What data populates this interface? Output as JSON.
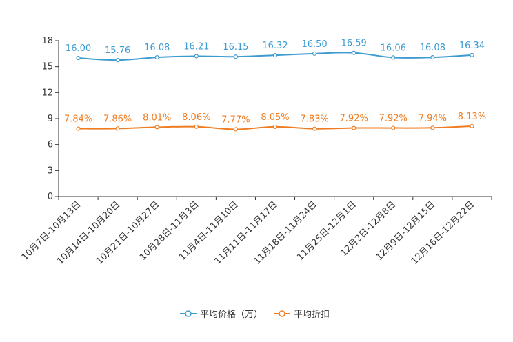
{
  "chart_data": {
    "type": "line",
    "categories": [
      "10月7日-10月13日",
      "10月14日-10月20日",
      "10月21日-10月27日",
      "10月28日-11月3日",
      "11月4日-11月10日",
      "11月11日-11月17日",
      "11月18日-11月24日",
      "11月25日-12月1日",
      "12月2日-12月8日",
      "12月9日-12月15日",
      "12月16日-12月22日"
    ],
    "yticks": [
      "0",
      "3",
      "6",
      "9",
      "12",
      "15",
      "18"
    ],
    "ylim": [
      0,
      18
    ],
    "series": [
      {
        "name": "平均价格（万）",
        "color": "#3d9bd0",
        "values": [
          16.0,
          15.76,
          16.08,
          16.21,
          16.15,
          16.32,
          16.5,
          16.59,
          16.06,
          16.08,
          16.34
        ],
        "labels": [
          "16.00",
          "15.76",
          "16.08",
          "16.21",
          "16.15",
          "16.32",
          "16.50",
          "16.59",
          "16.06",
          "16.08",
          "16.34"
        ]
      },
      {
        "name": "平均折扣",
        "color": "#f07c21",
        "values": [
          7.84,
          7.86,
          8.01,
          8.06,
          7.77,
          8.05,
          7.83,
          7.92,
          7.92,
          7.94,
          8.13
        ],
        "labels": [
          "7.84%",
          "7.86%",
          "8.01%",
          "8.06%",
          "7.77%",
          "8.05%",
          "7.83%",
          "7.92%",
          "7.92%",
          "7.94%",
          "8.13%"
        ]
      }
    ],
    "legend_position": "bottom"
  }
}
